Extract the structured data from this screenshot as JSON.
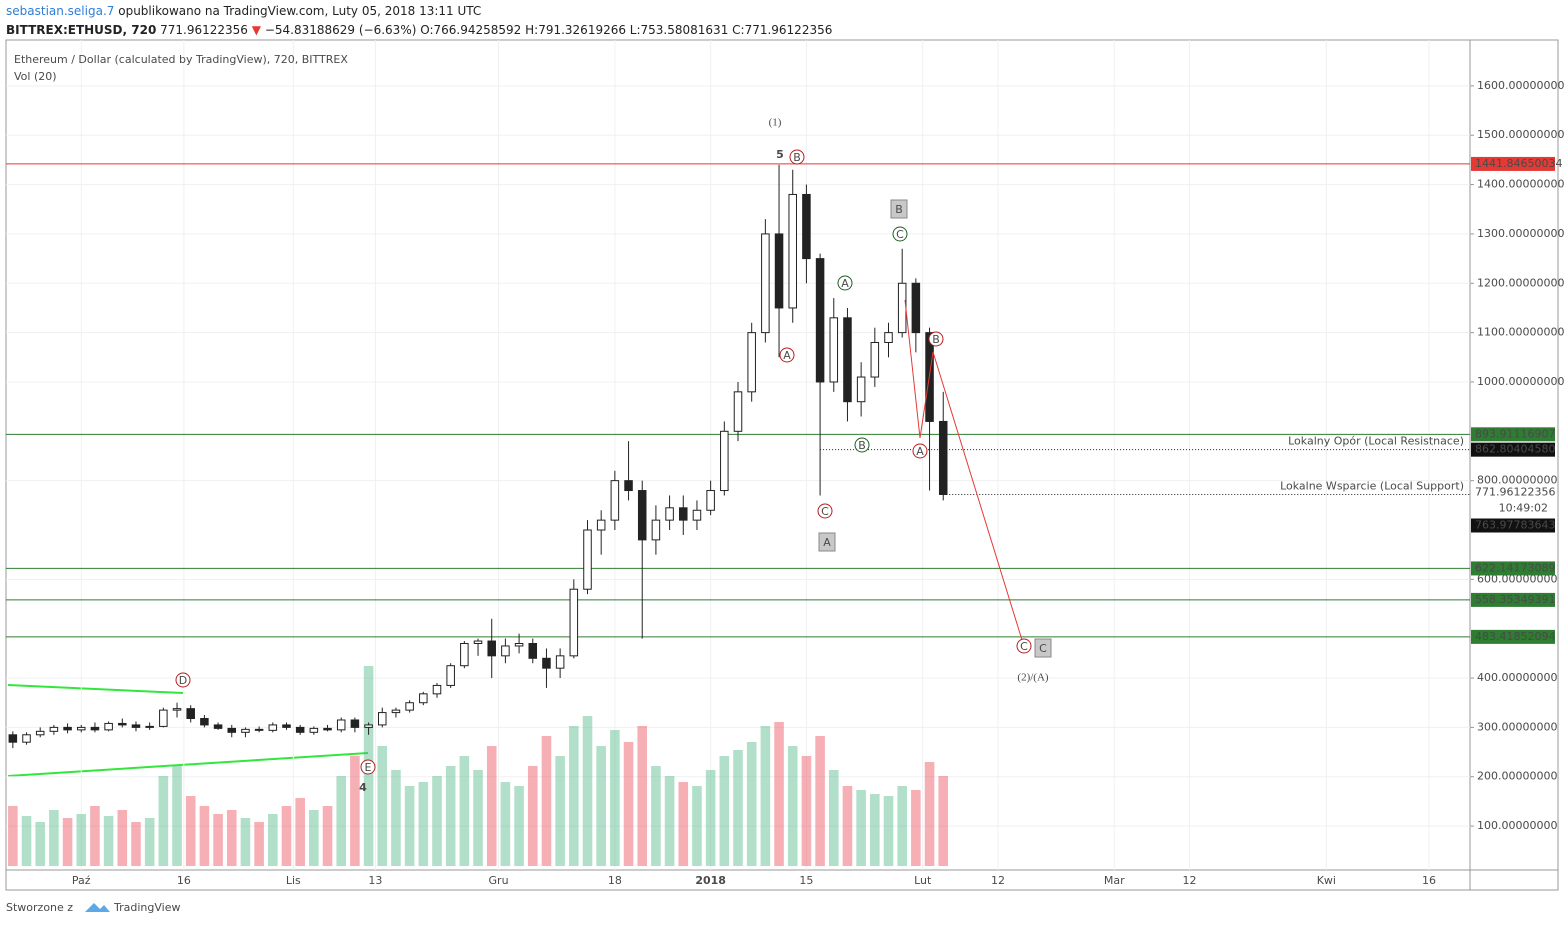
{
  "header": {
    "author": "sebastian.seliga.7",
    "published": "opublikowano na TradingView.com, Luty 05, 2018 13:11 UTC",
    "symbol": "BITTREX:ETHUSD, 720",
    "last": "771.96122356",
    "arrow": "▼",
    "change": "−54.83188629 (−6.63%)",
    "ohlc": "O:766.94258592 H:791.32619266 L:753.58081631 C:771.96122356"
  },
  "footer": {
    "made_with": "Stworzone z",
    "brand": "TradingView"
  },
  "chart_data": {
    "type": "candlestick",
    "title": "Ethereum / Dollar (calculated by TradingView), 720, BITTREX",
    "subtitle": "Vol (20)",
    "up_color": "#53b987",
    "down_color": "#eb4d5c",
    "x": [
      "2017-09-21",
      "2017-09-23",
      "2017-09-25",
      "2017-09-27",
      "2017-09-29",
      "2017-10-01",
      "2017-10-03",
      "2017-10-05",
      "2017-10-07",
      "2017-10-09",
      "2017-10-11",
      "2017-10-13",
      "2017-10-15",
      "2017-10-17",
      "2017-10-19",
      "2017-10-21",
      "2017-10-23",
      "2017-10-25",
      "2017-10-27",
      "2017-10-29",
      "2017-10-31",
      "2017-11-02",
      "2017-11-04",
      "2017-11-06",
      "2017-11-08",
      "2017-11-10",
      "2017-11-12",
      "2017-11-14",
      "2017-11-16",
      "2017-11-18",
      "2017-11-20",
      "2017-11-22",
      "2017-11-24",
      "2017-11-26",
      "2017-11-28",
      "2017-11-30",
      "2017-12-02",
      "2017-12-04",
      "2017-12-06",
      "2017-12-08",
      "2017-12-10",
      "2017-12-12",
      "2017-12-14",
      "2017-12-16",
      "2017-12-18",
      "2017-12-20",
      "2017-12-22",
      "2017-12-24",
      "2017-12-26",
      "2017-12-28",
      "2017-12-30",
      "2018-01-01",
      "2018-01-03",
      "2018-01-05",
      "2018-01-07",
      "2018-01-09",
      "2018-01-11",
      "2018-01-13",
      "2018-01-15",
      "2018-01-17",
      "2018-01-19",
      "2018-01-21",
      "2018-01-23",
      "2018-01-25",
      "2018-01-27",
      "2018-01-29",
      "2018-01-31",
      "2018-02-02",
      "2018-02-04"
    ],
    "candles": [
      [
        285,
        292,
        258,
        270
      ],
      [
        270,
        290,
        265,
        285
      ],
      [
        285,
        300,
        280,
        292
      ],
      [
        292,
        305,
        285,
        300
      ],
      [
        300,
        308,
        288,
        295
      ],
      [
        295,
        305,
        290,
        300
      ],
      [
        300,
        310,
        290,
        295
      ],
      [
        295,
        312,
        292,
        308
      ],
      [
        308,
        318,
        300,
        305
      ],
      [
        305,
        312,
        292,
        300
      ],
      [
        300,
        310,
        295,
        302
      ],
      [
        302,
        340,
        300,
        335
      ],
      [
        335,
        350,
        320,
        338
      ],
      [
        338,
        345,
        310,
        318
      ],
      [
        318,
        325,
        300,
        305
      ],
      [
        305,
        310,
        295,
        298
      ],
      [
        298,
        305,
        280,
        290
      ],
      [
        290,
        300,
        280,
        296
      ],
      [
        296,
        302,
        290,
        294
      ],
      [
        294,
        310,
        290,
        305
      ],
      [
        305,
        310,
        295,
        300
      ],
      [
        300,
        305,
        285,
        290
      ],
      [
        290,
        302,
        285,
        298
      ],
      [
        298,
        305,
        292,
        295
      ],
      [
        295,
        320,
        290,
        315
      ],
      [
        315,
        320,
        290,
        300
      ],
      [
        300,
        310,
        285,
        305
      ],
      [
        305,
        340,
        300,
        330
      ],
      [
        330,
        340,
        320,
        335
      ],
      [
        335,
        355,
        330,
        350
      ],
      [
        350,
        372,
        345,
        368
      ],
      [
        368,
        390,
        360,
        385
      ],
      [
        385,
        430,
        380,
        425
      ],
      [
        425,
        475,
        420,
        470
      ],
      [
        470,
        480,
        445,
        475
      ],
      [
        475,
        520,
        400,
        445
      ],
      [
        445,
        480,
        430,
        465
      ],
      [
        465,
        490,
        450,
        470
      ],
      [
        470,
        480,
        430,
        440
      ],
      [
        440,
        460,
        380,
        420
      ],
      [
        420,
        460,
        400,
        445
      ],
      [
        445,
        600,
        440,
        580
      ],
      [
        580,
        720,
        570,
        700
      ],
      [
        700,
        740,
        650,
        720
      ],
      [
        720,
        820,
        700,
        800
      ],
      [
        800,
        880,
        760,
        780
      ],
      [
        780,
        800,
        480,
        680
      ],
      [
        680,
        750,
        650,
        720
      ],
      [
        720,
        770,
        700,
        745
      ],
      [
        745,
        770,
        690,
        720
      ],
      [
        720,
        760,
        700,
        740
      ],
      [
        740,
        800,
        730,
        780
      ],
      [
        780,
        920,
        770,
        900
      ],
      [
        900,
        1000,
        880,
        980
      ],
      [
        980,
        1120,
        960,
        1100
      ],
      [
        1100,
        1330,
        1080,
        1300
      ],
      [
        1300,
        1440,
        1050,
        1150
      ],
      [
        1150,
        1430,
        1120,
        1380
      ],
      [
        1380,
        1400,
        1200,
        1250
      ],
      [
        1250,
        1260,
        770,
        1000
      ],
      [
        1000,
        1170,
        980,
        1130
      ],
      [
        1130,
        1150,
        920,
        960
      ],
      [
        960,
        1040,
        930,
        1010
      ],
      [
        1010,
        1110,
        990,
        1080
      ],
      [
        1080,
        1120,
        1050,
        1100
      ],
      [
        1100,
        1270,
        1090,
        1200
      ],
      [
        1200,
        1210,
        1060,
        1100
      ],
      [
        1100,
        1110,
        780,
        920
      ],
      [
        920,
        980,
        760,
        772
      ]
    ],
    "volume": [
      30,
      25,
      22,
      28,
      24,
      26,
      30,
      25,
      28,
      22,
      24,
      45,
      50,
      35,
      30,
      26,
      28,
      24,
      22,
      26,
      30,
      34,
      28,
      30,
      45,
      55,
      100,
      60,
      48,
      40,
      42,
      45,
      50,
      55,
      48,
      60,
      42,
      40,
      50,
      65,
      55,
      70,
      75,
      60,
      68,
      62,
      70,
      50,
      45,
      42,
      40,
      48,
      55,
      58,
      62,
      70,
      72,
      60,
      55,
      65,
      48,
      40,
      38,
      36,
      35,
      40,
      38,
      52,
      45
    ],
    "xlim": [
      "2017-09-20",
      "2018-04-22"
    ],
    "xticks": [
      {
        "value": "2017-10-01",
        "label": "Paź"
      },
      {
        "value": "2017-10-16",
        "label": "16"
      },
      {
        "value": "2017-11-01",
        "label": "Lis"
      },
      {
        "value": "2017-11-13",
        "label": "13"
      },
      {
        "value": "2017-12-01",
        "label": "Gru"
      },
      {
        "value": "2017-12-18",
        "label": "18"
      },
      {
        "value": "2018-01-01",
        "label": "2018"
      },
      {
        "value": "2018-01-15",
        "label": "15"
      },
      {
        "value": "2018-02-01",
        "label": "Lut"
      },
      {
        "value": "2018-02-12",
        "label": "12"
      },
      {
        "value": "2018-03-01",
        "label": "Mar"
      },
      {
        "value": "2018-03-12",
        "label": "12"
      },
      {
        "value": "2018-04-01",
        "label": "Kwi"
      },
      {
        "value": "2018-04-16",
        "label": "16"
      }
    ],
    "ylim": [
      11,
      1693
    ],
    "yticks": [
      {
        "value": 1600,
        "label": "1600.00000000"
      },
      {
        "value": 1500,
        "label": "1500.00000000"
      },
      {
        "value": 1400,
        "label": "1400.00000000"
      },
      {
        "value": 1300,
        "label": "1300.00000000"
      },
      {
        "value": 1200,
        "label": "1200.00000000"
      },
      {
        "value": 1100,
        "label": "1100.00000000"
      },
      {
        "value": 1000,
        "label": "1000.00000000"
      },
      {
        "value": 800,
        "label": "800.00000000"
      },
      {
        "value": 600,
        "label": "600.00000000"
      },
      {
        "value": 400,
        "label": "400.00000000"
      },
      {
        "value": 300,
        "label": "300.00000000"
      },
      {
        "value": 200,
        "label": "200.00000000"
      },
      {
        "value": 100,
        "label": "100.00000000"
      }
    ],
    "levels": [
      {
        "value": 1441.84650034,
        "label": "1441.84650034",
        "color": "#e53935"
      },
      {
        "value": 893.91116907,
        "label": "893.91116907",
        "color": "#2e7d32"
      },
      {
        "value": 622.14173089,
        "label": "622.14173089",
        "color": "#2e7d32"
      },
      {
        "value": 558.35349391,
        "label": "558.35349391",
        "color": "#2e7d32"
      },
      {
        "value": 483.41852094,
        "label": "483.41852094",
        "color": "#2e7d32"
      }
    ],
    "dotted": [
      {
        "value": 862.8040458,
        "label": "862.80404580",
        "text": "Lokalny Opór (Local Resistnace)"
      },
      {
        "value": 771.96122356,
        "label": "771.96122356",
        "text": "Lokalne Wsparcie (Local Support)"
      }
    ],
    "countdown": "10:49:02",
    "bid_label": "763.97783643",
    "annotations": [
      "(1)",
      "5",
      "B",
      "A",
      "A",
      "B",
      "C",
      "A",
      "B",
      "C",
      "A",
      "B",
      "C",
      "C",
      "(2)/(A)",
      "D",
      "E",
      "4"
    ]
  }
}
